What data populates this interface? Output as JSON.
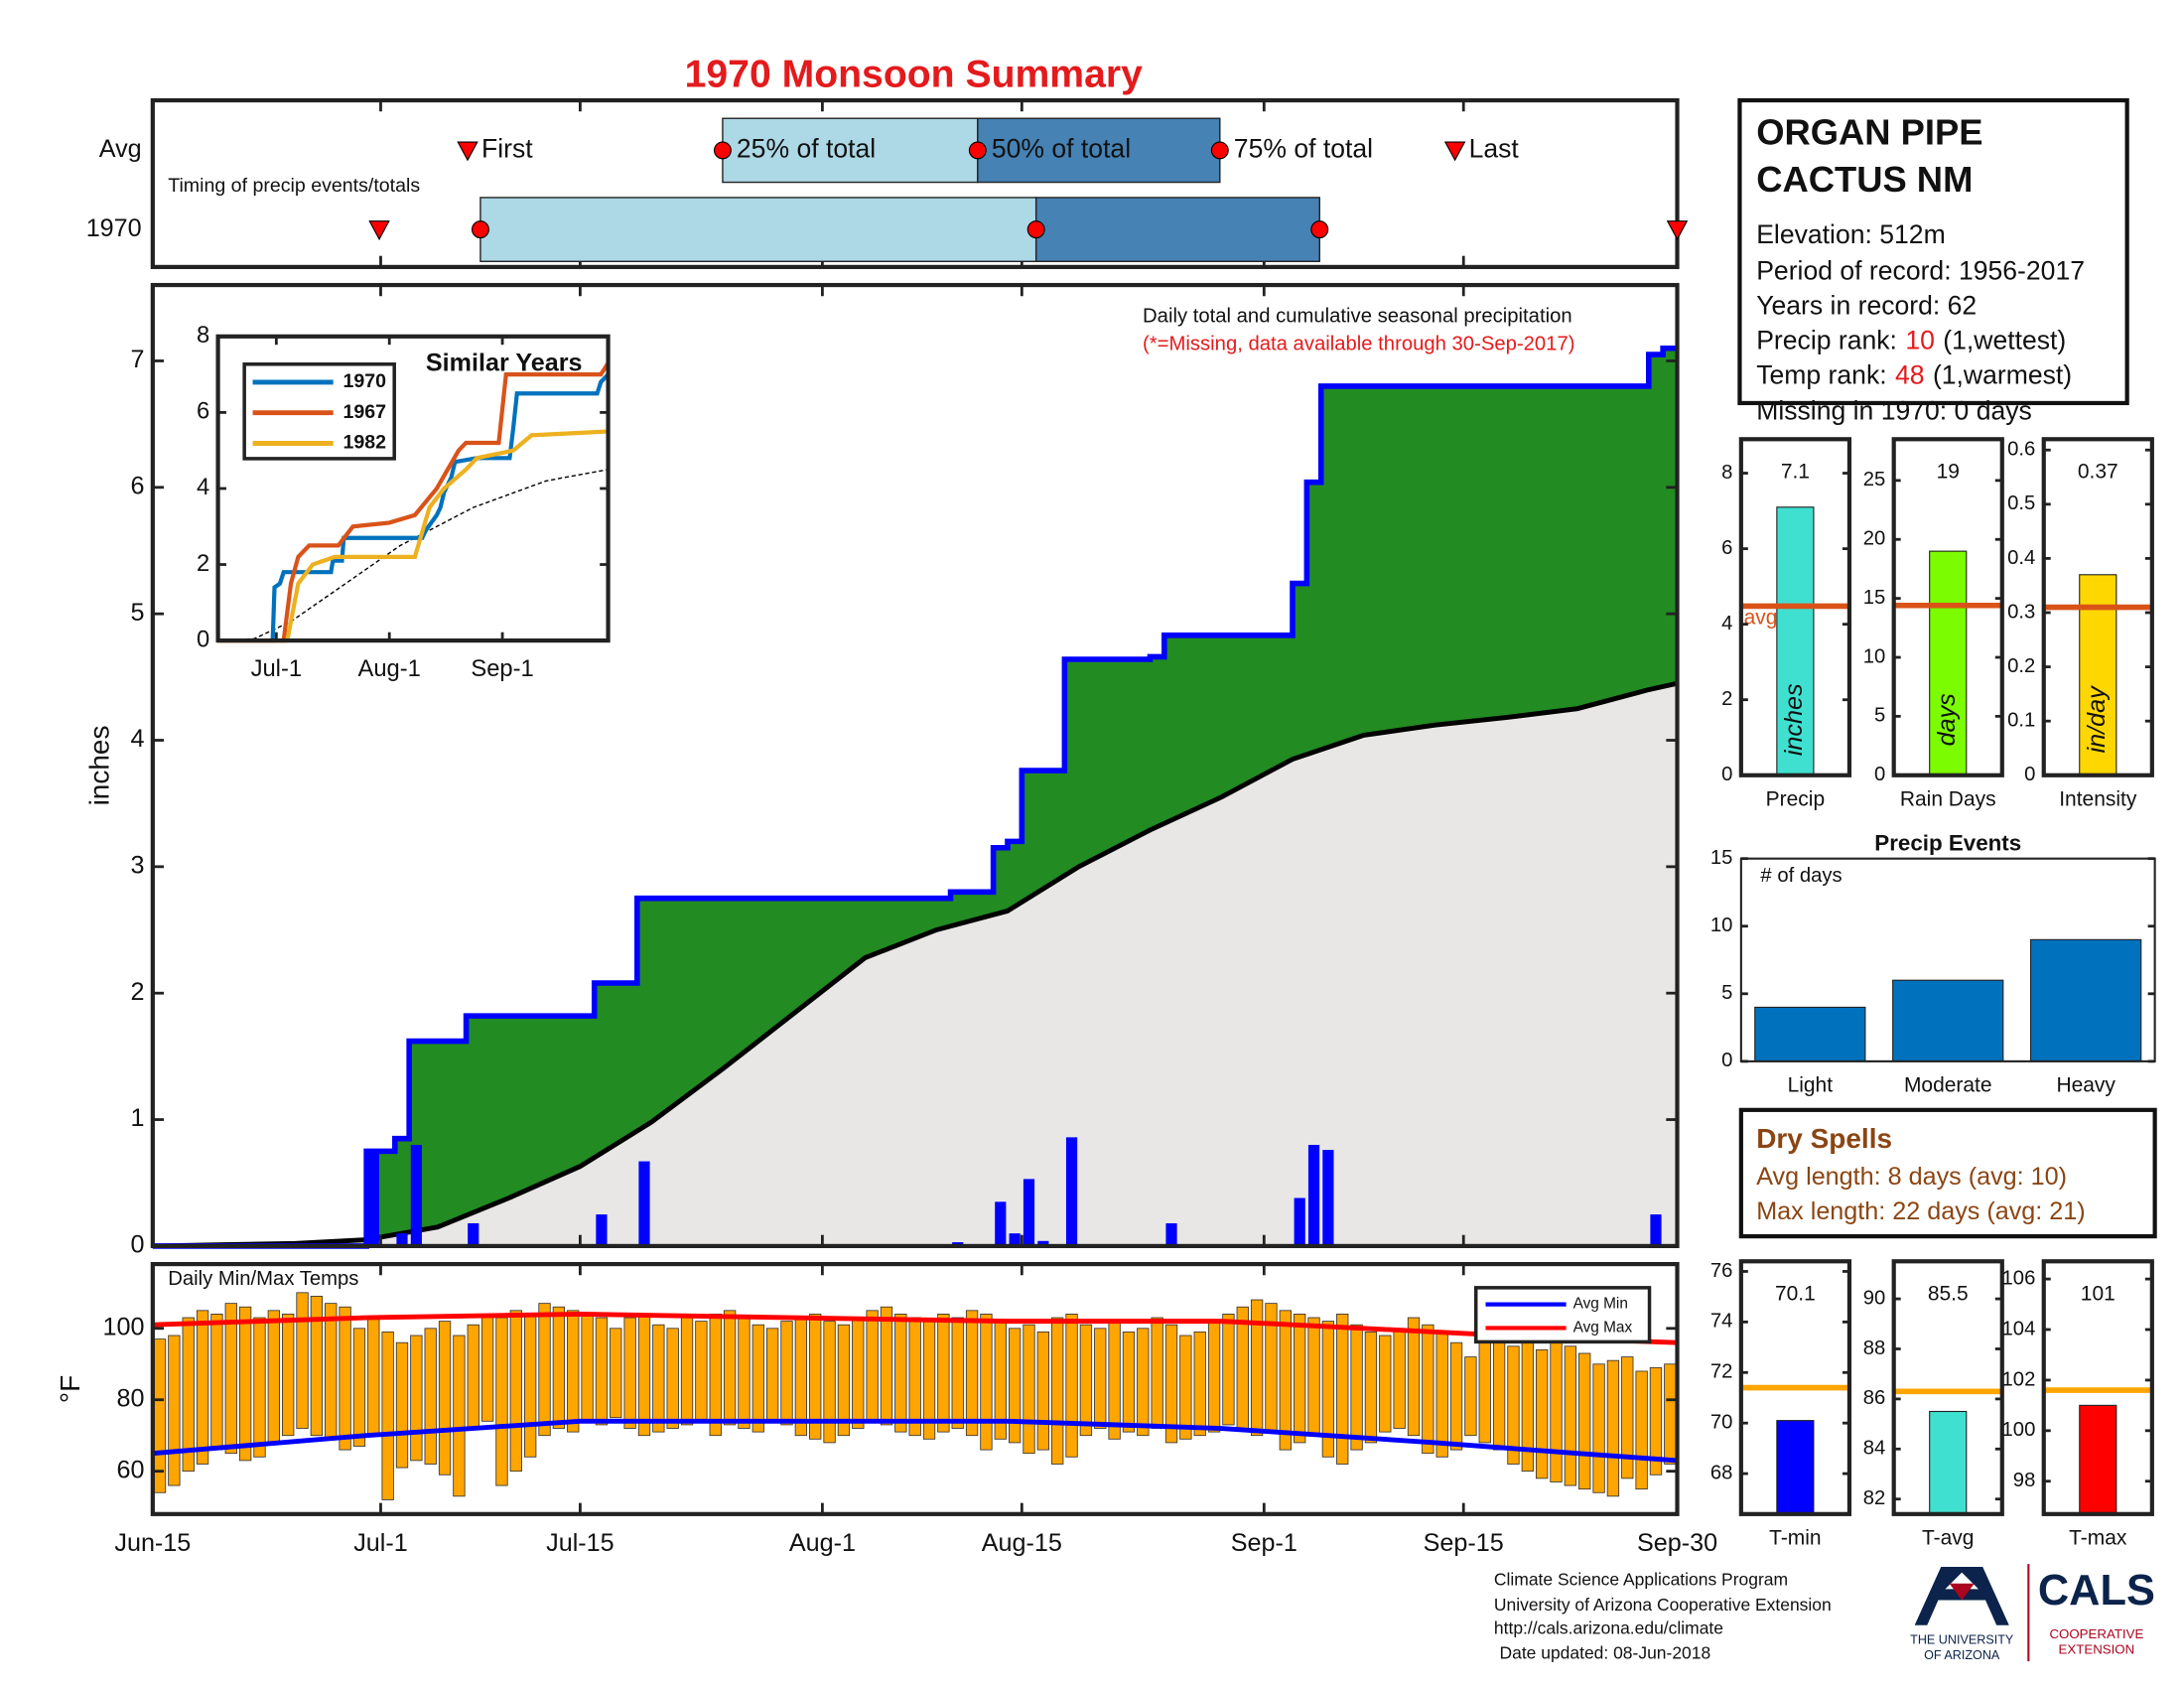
{
  "title": "1970 Monsoon Summary",
  "chart_data": [
    {
      "type": "timing",
      "xlim": [
        0,
        107
      ],
      "note": "Timing of precip events/totals",
      "marker_labels": [
        "First",
        "25% of total",
        "50% of total",
        "75% of total",
        "Last"
      ],
      "box_colors": [
        "#add8e6",
        "#4682b4"
      ],
      "marker_color": "#ff0000",
      "series": [
        {
          "name": "Avg",
          "values": [
            22.1,
            40,
            57.9,
            74.9,
            91.4
          ]
        },
        {
          "name": "1970",
          "values": [
            15.9,
            23,
            62,
            81.9,
            107
          ]
        }
      ]
    },
    {
      "type": "precip",
      "title": "Daily total and cumulative seasonal precipitation",
      "subtitle": "(*=Missing, data available through 30-Sep-2017)",
      "ylabel": "inches",
      "xlim": [
        0,
        107
      ],
      "ylim": [
        0,
        7.6
      ],
      "yticks": [
        0,
        1,
        2,
        3,
        4,
        5,
        6,
        7
      ],
      "daily": {
        "color": "#0000ff",
        "x": [
          15,
          17,
          18,
          22,
          31,
          34,
          56,
          59,
          60,
          61,
          62,
          64,
          71,
          80,
          81,
          82,
          105
        ],
        "values": [
          0.75,
          0.1,
          0.8,
          0.18,
          0.25,
          0.67,
          0.03,
          0.35,
          0.1,
          0.53,
          0.04,
          0.86,
          0.18,
          0.38,
          0.8,
          0.76,
          0.25
        ]
      },
      "cumulative": {
        "color": "#0000ff",
        "fill": "#228b22",
        "x": [
          0,
          15,
          17,
          18,
          22,
          31,
          34,
          56,
          59,
          60,
          61,
          64,
          70,
          71,
          80,
          81,
          82,
          105,
          106,
          107
        ],
        "values": [
          0,
          0.75,
          0.85,
          1.62,
          1.82,
          2.08,
          2.75,
          2.8,
          3.15,
          3.2,
          3.76,
          4.64,
          4.66,
          4.83,
          5.24,
          6.04,
          6.8,
          7.05,
          7.1,
          7.1
        ]
      },
      "average": {
        "color": "#000000",
        "fill": "#e8e7e6",
        "x": [
          0,
          5,
          10,
          15,
          20,
          25,
          30,
          35,
          40,
          45,
          50,
          55,
          60,
          65,
          70,
          75,
          80,
          85,
          90,
          95,
          100,
          105,
          107
        ],
        "values": [
          0,
          0.01,
          0.02,
          0.05,
          0.15,
          0.38,
          0.63,
          0.98,
          1.4,
          1.84,
          2.28,
          2.5,
          2.65,
          3.0,
          3.29,
          3.55,
          3.85,
          4.04,
          4.12,
          4.18,
          4.25,
          4.4,
          4.45
        ]
      }
    },
    {
      "type": "line",
      "title": "Similar Years",
      "xlim": [
        0,
        107
      ],
      "xticks": [
        {
          "value": 16,
          "label": "Jul-1"
        },
        {
          "value": 47,
          "label": "Aug-1"
        },
        {
          "value": 78,
          "label": "Sep-1"
        }
      ],
      "ylim": [
        0,
        8
      ],
      "yticks": [
        0,
        2,
        4,
        6,
        8
      ],
      "series": [
        {
          "name": "1970",
          "color": "#0072bd",
          "x": [
            0,
            15,
            15.5,
            17,
            18,
            19,
            31,
            31.5,
            34,
            34.5,
            56,
            57,
            60,
            61,
            62,
            64,
            65,
            71,
            80,
            81,
            82,
            104,
            105,
            107
          ],
          "values": [
            0,
            0,
            1.4,
            1.5,
            1.8,
            1.8,
            1.8,
            2.1,
            2.1,
            2.7,
            2.7,
            2.9,
            3.3,
            3.5,
            3.9,
            4.3,
            4.7,
            4.8,
            4.8,
            5.6,
            6.5,
            6.5,
            6.8,
            7.0
          ]
        },
        {
          "name": "1967",
          "color": "#d95319",
          "x": [
            0,
            18,
            20,
            22,
            25,
            33,
            37,
            47,
            54,
            60,
            66,
            68,
            77,
            79,
            105,
            107
          ],
          "values": [
            0,
            0,
            1.5,
            2.2,
            2.5,
            2.5,
            3.0,
            3.1,
            3.3,
            4.0,
            5.0,
            5.2,
            5.2,
            7.0,
            7.0,
            7.3
          ]
        },
        {
          "name": "1982",
          "color": "#edb120",
          "x": [
            0,
            19,
            22,
            26,
            32,
            54,
            58,
            62,
            68,
            71,
            81,
            86,
            107
          ],
          "values": [
            0,
            0,
            1.5,
            2.0,
            2.2,
            2.2,
            3.5,
            4.0,
            4.5,
            4.8,
            5.0,
            5.4,
            5.5
          ]
        }
      ],
      "average": {
        "color": "#000000",
        "x": [
          0,
          10,
          20,
          35,
          50,
          70,
          90,
          107
        ],
        "values": [
          0,
          0.05,
          0.5,
          1.5,
          2.5,
          3.5,
          4.2,
          4.5
        ]
      }
    },
    {
      "type": "temps",
      "title": "Daily Min/Max Temps",
      "ylabel": "°F",
      "xlim": [
        0,
        107
      ],
      "xticks": [
        {
          "value": 0,
          "label": "Jun-15"
        },
        {
          "value": 16,
          "label": "Jul-1"
        },
        {
          "value": 30,
          "label": "Jul-15"
        },
        {
          "value": 47,
          "label": "Aug-1"
        },
        {
          "value": 61,
          "label": "Aug-15"
        },
        {
          "value": 78,
          "label": "Sep-1"
        },
        {
          "value": 92,
          "label": "Sep-15"
        },
        {
          "value": 107,
          "label": "Sep-30"
        }
      ],
      "ylim": [
        48,
        118
      ],
      "yticks": [
        60,
        80,
        100
      ],
      "color": "#ffa500",
      "legend": "upper right",
      "max": [
        97,
        98,
        103,
        105,
        104,
        107,
        106,
        103,
        105,
        104,
        110,
        109,
        107,
        106,
        100,
        103,
        99,
        96,
        98,
        100,
        102,
        98,
        101,
        104,
        103,
        105,
        104,
        107,
        106,
        105,
        104,
        103,
        100,
        103,
        104,
        101,
        100,
        103,
        102,
        104,
        105,
        103,
        101,
        100,
        102,
        103,
        104,
        102,
        101,
        103,
        105,
        106,
        104,
        103,
        102,
        104,
        103,
        105,
        104,
        102,
        100,
        101,
        99,
        103,
        104,
        101,
        100,
        102,
        99,
        100,
        103,
        101,
        98,
        99,
        102,
        104,
        106,
        108,
        107,
        105,
        104,
        103,
        102,
        104,
        101,
        99,
        98,
        100,
        103,
        101,
        99,
        96,
        92,
        97,
        99,
        95,
        96,
        94,
        97,
        95,
        93,
        90,
        91,
        92,
        88,
        89,
        90
      ],
      "min": [
        54,
        56,
        60,
        62,
        66,
        65,
        63,
        64,
        68,
        70,
        72,
        70,
        69,
        66,
        67,
        70,
        52,
        61,
        63,
        62,
        59,
        53,
        72,
        74,
        56,
        60,
        64,
        70,
        72,
        71,
        74,
        73,
        75,
        72,
        70,
        71,
        72,
        73,
        74,
        70,
        73,
        72,
        71,
        74,
        73,
        70,
        69,
        68,
        70,
        72,
        74,
        73,
        71,
        70,
        69,
        71,
        72,
        70,
        66,
        69,
        68,
        65,
        66,
        62,
        64,
        70,
        72,
        69,
        71,
        70,
        72,
        68,
        69,
        70,
        71,
        73,
        72,
        70,
        71,
        66,
        68,
        70,
        64,
        62,
        66,
        68,
        71,
        72,
        70,
        65,
        64,
        66,
        70,
        68,
        66,
        62,
        60,
        58,
        57,
        56,
        55,
        54,
        53,
        58,
        55,
        59,
        62
      ],
      "series": [
        {
          "name": "Avg Min",
          "color": "#0000ff",
          "x": [
            0,
            15,
            30,
            45,
            60,
            75,
            90,
            100,
            107
          ],
          "values": [
            65,
            70,
            74,
            74,
            74,
            72,
            68,
            65,
            63
          ]
        },
        {
          "name": "Avg Max",
          "color": "#ff0000",
          "x": [
            0,
            15,
            30,
            45,
            60,
            75,
            90,
            100,
            107
          ],
          "values": [
            101,
            103,
            104,
            103,
            102,
            102,
            99,
            97,
            96
          ]
        }
      ]
    },
    {
      "type": "bar",
      "xlabel": "Precip",
      "categories": [
        "inches"
      ],
      "values": [
        7.1
      ],
      "average": 4.48,
      "avg_label": "avg",
      "ylim": [
        0,
        8.9
      ],
      "yticks": [
        0,
        2,
        4,
        6,
        8
      ],
      "color": "#40e0d0",
      "avg_color": "#d95319",
      "show_values": true
    },
    {
      "type": "bar",
      "xlabel": "Rain Days",
      "categories": [
        "days"
      ],
      "values": [
        19
      ],
      "average": 14.4,
      "ylim": [
        0,
        28.5
      ],
      "yticks": [
        0,
        5,
        10,
        15,
        20,
        25
      ],
      "color": "#7cfc00",
      "avg_color": "#d95319",
      "show_values": true
    },
    {
      "type": "bar",
      "xlabel": "Intensity",
      "categories": [
        "in/day"
      ],
      "values": [
        0.37
      ],
      "average": 0.31,
      "ylim": [
        0,
        0.62
      ],
      "yticks": [
        0,
        0.1,
        0.2,
        0.3,
        0.4,
        0.5,
        0.6
      ],
      "color": "#ffd700",
      "avg_color": "#d95319",
      "show_values": true
    },
    {
      "type": "bar",
      "title": "Precip Events",
      "note": "# of days",
      "categories": [
        "Light",
        "Moderate",
        "Heavy"
      ],
      "values": [
        4,
        6,
        9
      ],
      "ylim": [
        0,
        15
      ],
      "yticks": [
        0,
        5,
        10,
        15
      ],
      "color": "#0072bd",
      "show_values": false
    },
    {
      "type": "bar",
      "xlabel": "T-min",
      "values": [
        70.1
      ],
      "average": 71.4,
      "ylim": [
        66.4,
        76.4
      ],
      "yticks": [
        68,
        70,
        72,
        74,
        76
      ],
      "color": "#0000ff",
      "avg_color": "#ffa500",
      "show_values": true
    },
    {
      "type": "bar",
      "xlabel": "T-avg",
      "values": [
        85.5
      ],
      "average": 86.3,
      "ylim": [
        81.4,
        91.5
      ],
      "yticks": [
        82,
        84,
        86,
        88,
        90
      ],
      "color": "#40e0d0",
      "avg_color": "#ffa500",
      "show_values": true
    },
    {
      "type": "bar",
      "xlabel": "T-max",
      "values": [
        101
      ],
      "average": 101.6,
      "ylim": [
        96.7,
        106.7
      ],
      "yticks": [
        98,
        100,
        102,
        104,
        106
      ],
      "color": "#ff0000",
      "avg_color": "#ffa500",
      "show_values": true
    }
  ],
  "info": {
    "name": [
      "ORGAN PIPE",
      "CACTUS NM"
    ],
    "elevation": "Elevation: 512m",
    "period": "Period of record: 1956-2017",
    "years": "Years in record: 62",
    "precip_rank": {
      "label": "Precip rank:",
      "value": 10,
      "note": "(1,wettest)"
    },
    "temp_rank": {
      "label": "Temp rank:",
      "value": 48,
      "note": "(1,warmest)"
    },
    "missing": "Missing in 1970: 0 days"
  },
  "dry_spells": {
    "title": "Dry Spells",
    "lines": [
      "Avg length: 8 days (avg: 10)",
      "Max length: 22 days (avg: 21)"
    ]
  },
  "footer": {
    "lines": [
      "Climate Science Applications Program",
      "University of Arizona Cooperative Extension",
      "http://cals.arizona.edu/climate",
      "Date updated: 08-Jun-2018"
    ],
    "university": [
      "THE UNIVERSITY",
      "OF ARIZONA"
    ],
    "cals": "CALS",
    "extension": [
      "COOPERATIVE",
      "EXTENSION"
    ]
  }
}
